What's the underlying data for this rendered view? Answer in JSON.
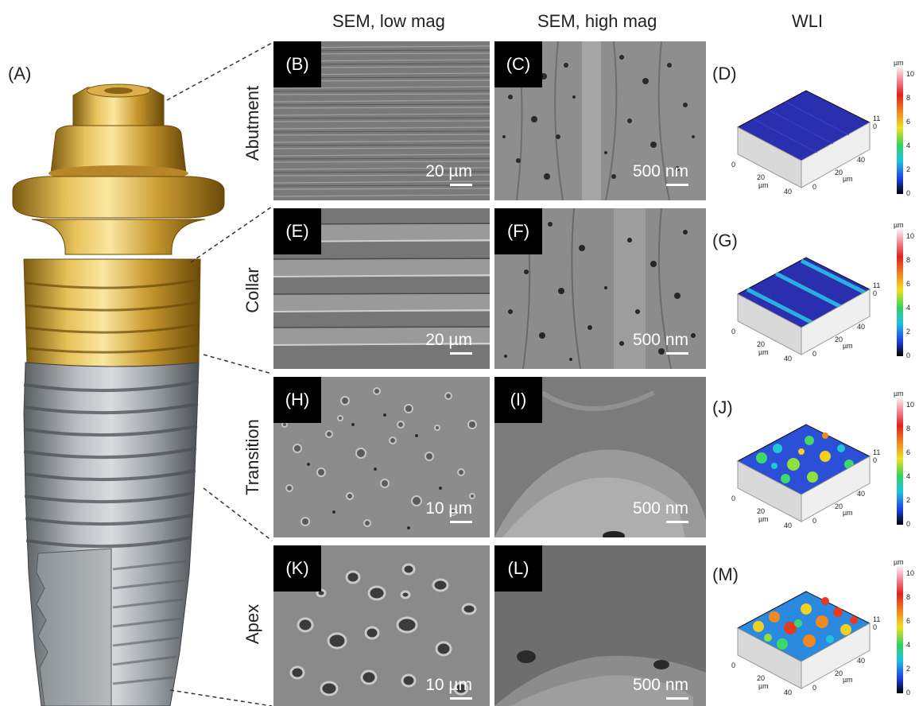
{
  "figure": {
    "columns": [
      "SEM, low mag",
      "SEM, high mag",
      "WLI"
    ],
    "implant_label": "(A)",
    "rows": [
      {
        "name": "Abutment",
        "low": {
          "tag": "(B)",
          "scale": "20 µm"
        },
        "high": {
          "tag": "(C)",
          "scale": "500 nm"
        },
        "wli": {
          "tag": "(D)"
        }
      },
      {
        "name": "Collar",
        "low": {
          "tag": "(E)",
          "scale": "20 µm"
        },
        "high": {
          "tag": "(F)",
          "scale": "500 nm"
        },
        "wli": {
          "tag": "(G)"
        }
      },
      {
        "name": "Transition",
        "low": {
          "tag": "(H)",
          "scale": "10 µm"
        },
        "high": {
          "tag": "(I)",
          "scale": "500 nm"
        },
        "wli": {
          "tag": "(J)"
        }
      },
      {
        "name": "Apex",
        "low": {
          "tag": "(K)",
          "scale": "10 µm"
        },
        "high": {
          "tag": "(L)",
          "scale": "500 nm"
        },
        "wli": {
          "tag": "(M)"
        }
      }
    ],
    "wli_axes": {
      "unit": "µm",
      "ticks": [
        "0",
        "20",
        "40"
      ],
      "z_tick": "11",
      "z_zero": "0"
    },
    "colorbar": {
      "unit": "µm",
      "ticks": [
        "10",
        "8",
        "6",
        "4",
        "2",
        "0"
      ]
    }
  }
}
